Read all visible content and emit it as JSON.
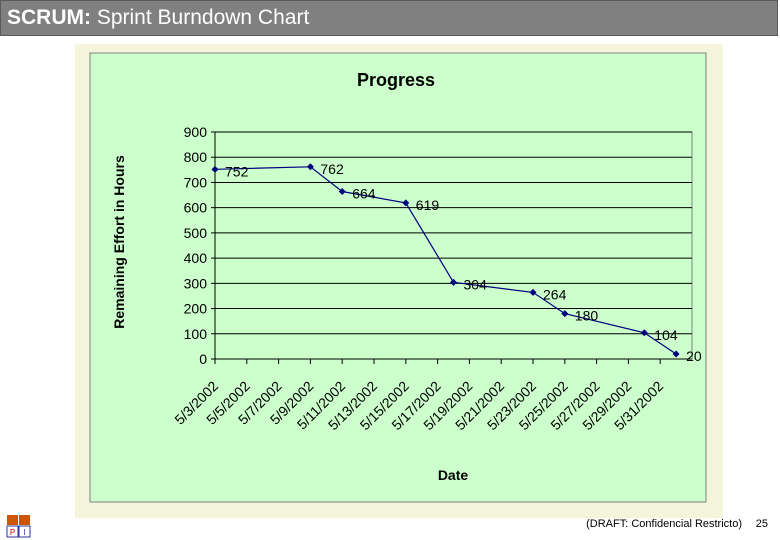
{
  "slide": {
    "title_bold": "SCRUM:",
    "title_rest": " Sprint Burndown Chart",
    "footer": "(DRAFT: Confidencial Restricto)",
    "page_number": "25",
    "logo_letters": [
      "P",
      "I"
    ]
  },
  "colors": {
    "plot_bg": "#ccffcc",
    "line": "#000080",
    "frame": "#f5f5dc",
    "title_bar": "#808080"
  },
  "chart_data": {
    "type": "line",
    "title": "Progress",
    "xlabel": "Date",
    "ylabel": "Remaining Effort in Hours",
    "ylim": [
      0,
      900
    ],
    "yticks": [
      0,
      100,
      200,
      300,
      400,
      500,
      600,
      700,
      800,
      900
    ],
    "x_tick_labels": [
      "5/3/2002",
      "5/5/2002",
      "5/7/2002",
      "5/9/2002",
      "5/11/2002",
      "5/13/2002",
      "5/15/2002",
      "5/17/2002",
      "5/19/2002",
      "5/21/2002",
      "5/23/2002",
      "5/25/2002",
      "5/27/2002",
      "5/29/2002",
      "5/31/2002"
    ],
    "grid": true,
    "legend": "none",
    "series": [
      {
        "points": [
          {
            "x": "5/3/2002",
            "y": 752
          },
          {
            "x": "5/9/2002",
            "y": 762
          },
          {
            "x": "5/11/2002",
            "y": 664
          },
          {
            "x": "5/15/2002",
            "y": 619
          },
          {
            "x": "5/18/2002",
            "y": 304
          },
          {
            "x": "5/23/2002",
            "y": 264
          },
          {
            "x": "5/25/2002",
            "y": 180
          },
          {
            "x": "5/30/2002",
            "y": 104
          },
          {
            "x": "6/1/2002",
            "y": 20
          }
        ]
      }
    ]
  }
}
